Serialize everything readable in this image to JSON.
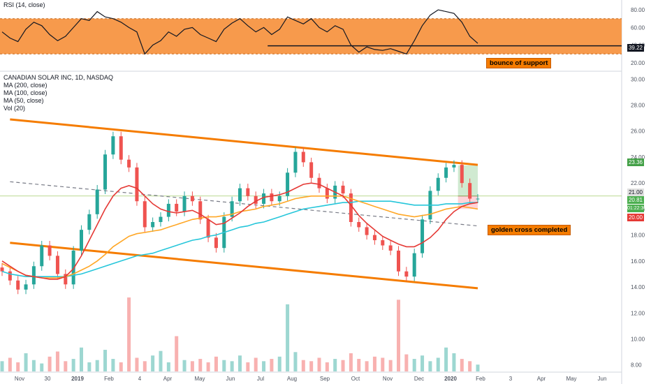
{
  "rsi_legend": "RSI (14, close)",
  "price_legend": [
    "CANADIAN SOLAR INC, 1D, NASDAQ",
    "MA (200, close)",
    "MA (100, close)",
    "MA (50, close)",
    "Vol (20)"
  ],
  "annotations": {
    "rsi_note": "bounce of support",
    "cross_note": "golden cross completed"
  },
  "colors": {
    "rsi_band": "#f79a4c",
    "channel": "#f57c00",
    "up_candle": "#26a69a",
    "down_candle": "#ef5350",
    "ma200": "#26c6da",
    "ma100": "#ffa726",
    "ma50": "#e53935",
    "target_zone": "#c8e6c9",
    "stop_zone": "#ffcdd2"
  },
  "price_tags": {
    "target": "23.36",
    "current": "21.00",
    "last": "20.81",
    "countdown": "01:22:30",
    "stop": "20.00"
  },
  "rsi_tag": "39.22",
  "chart_data": [
    {
      "type": "line",
      "title": "RSI (14, close)",
      "ylim": [
        12,
        88
      ],
      "yticks": [
        "80.00",
        "60.00",
        "40.00",
        "20.00"
      ],
      "band": [
        30,
        70
      ],
      "support_level": 39.22,
      "x": [
        "Nov 1 2018",
        "Nov 8",
        "Nov 15",
        "Nov 22",
        "Nov 30",
        "Dec 7",
        "Dec 14",
        "Dec 21",
        "Jan 2 2019",
        "Jan 9",
        "Jan 16",
        "Jan 24",
        "Feb 1",
        "Feb 8",
        "Feb 15",
        "Feb 22",
        "Mar 4",
        "Mar 11",
        "Mar 18",
        "Mar 25",
        "Apr 1",
        "Apr 8",
        "Apr 15",
        "Apr 22",
        "May 1",
        "May 8",
        "May 15",
        "May 22",
        "Jun 3",
        "Jun 10",
        "Jun 17",
        "Jun 24",
        "Jul 1",
        "Jul 9",
        "Jul 16",
        "Jul 23",
        "Aug 1",
        "Aug 8",
        "Aug 15",
        "Aug 22",
        "Sep 3",
        "Sep 10",
        "Sep 17",
        "Sep 24",
        "Oct 1",
        "Oct 8",
        "Oct 15",
        "Oct 22",
        "Nov 1 2019",
        "Nov 8",
        "Nov 15",
        "Nov 22",
        "Dec 2",
        "Dec 9",
        "Dec 16",
        "Dec 23",
        "Jan 2 2020",
        "Jan 9",
        "Jan 16",
        "Jan 24",
        "Feb 3 2020"
      ],
      "values": [
        55,
        48,
        44,
        58,
        66,
        62,
        52,
        45,
        50,
        60,
        70,
        68,
        78,
        72,
        70,
        66,
        60,
        55,
        30,
        40,
        45,
        55,
        50,
        58,
        60,
        52,
        48,
        44,
        58,
        65,
        70,
        62,
        55,
        60,
        52,
        58,
        72,
        68,
        64,
        70,
        60,
        55,
        62,
        58,
        40,
        32,
        38,
        35,
        34,
        36,
        33,
        30,
        45,
        62,
        74,
        80,
        78,
        76,
        66,
        50,
        42
      ]
    },
    {
      "type": "line",
      "title": "CANADIAN SOLAR INC, 1D, NASDAQ",
      "ylim": [
        7.5,
        30.5
      ],
      "yticks": [
        "30.00",
        "28.00",
        "26.00",
        "24.00",
        "22.00",
        "20.00",
        "18.00",
        "16.00",
        "14.00",
        "12.00",
        "10.00",
        "8.00"
      ],
      "x_ticks": [
        "Nov",
        "30",
        "2019",
        "Feb",
        "4",
        "Apr",
        "May",
        "Jun",
        "Jul",
        "Aug",
        "Sep",
        "Oct",
        "Nov",
        "Dec",
        "2020",
        "Feb",
        "3",
        "Apr",
        "May",
        "Jun"
      ],
      "x": [
        "Nov 1 2018",
        "Nov 8",
        "Nov 15",
        "Nov 22",
        "Nov 30",
        "Dec 7",
        "Dec 14",
        "Dec 21",
        "Jan 2 2019",
        "Jan 9",
        "Jan 16",
        "Jan 24",
        "Feb 1",
        "Feb 8",
        "Feb 15",
        "Feb 22",
        "Mar 4",
        "Mar 11",
        "Mar 18",
        "Mar 25",
        "Apr 1",
        "Apr 8",
        "Apr 15",
        "Apr 22",
        "May 1",
        "May 8",
        "May 15",
        "May 22",
        "Jun 3",
        "Jun 10",
        "Jun 17",
        "Jun 24",
        "Jul 1",
        "Jul 9",
        "Jul 16",
        "Jul 23",
        "Aug 1",
        "Aug 8",
        "Aug 15",
        "Aug 22",
        "Sep 3",
        "Sep 10",
        "Sep 17",
        "Sep 24",
        "Oct 1",
        "Oct 8",
        "Oct 15",
        "Oct 22",
        "Nov 1 2019",
        "Nov 8",
        "Nov 15",
        "Nov 22",
        "Dec 2",
        "Dec 9",
        "Dec 16",
        "Dec 23",
        "Jan 2 2020",
        "Jan 9",
        "Jan 16",
        "Jan 24",
        "Feb 3 2020"
      ],
      "series": [
        {
          "values": [
            15.2,
            14.5,
            13.8,
            14.2,
            15.6,
            17.2,
            16.4,
            15.0,
            14.2,
            16.8,
            18.4,
            19.6,
            21.5,
            24.2,
            25.6,
            23.8,
            23.2,
            20.6,
            18.6,
            19.0,
            19.4,
            20.4,
            19.8,
            21.0,
            20.6,
            19.2,
            17.8,
            17.0,
            19.4,
            20.6,
            21.6,
            21.0,
            20.4,
            21.2,
            20.6,
            21.0,
            22.8,
            24.4,
            23.6,
            22.4,
            21.6,
            20.8,
            21.8,
            21.2,
            19.0,
            18.6,
            18.0,
            17.6,
            17.2,
            16.8,
            15.2,
            14.8,
            16.6,
            19.2,
            21.4,
            22.4,
            23.2,
            23.4,
            22.0,
            20.8,
            20.8
          ]
        },
        {
          "name": "MA (200, close)",
          "values": [
            15.2,
            15.0,
            14.9,
            14.8,
            14.8,
            14.8,
            14.8,
            14.8,
            14.8,
            14.9,
            15.0,
            15.2,
            15.4,
            15.6,
            15.8,
            16.0,
            16.2,
            16.4,
            16.5,
            16.6,
            16.8,
            17.0,
            17.2,
            17.4,
            17.6,
            17.7,
            17.9,
            18.0,
            18.2,
            18.4,
            18.6,
            18.7,
            18.9,
            19.0,
            19.2,
            19.4,
            19.6,
            19.8,
            20.0,
            20.1,
            20.2,
            20.3,
            20.4,
            20.5,
            20.5,
            20.6,
            20.6,
            20.6,
            20.6,
            20.6,
            20.5,
            20.4,
            20.3,
            20.3,
            20.3,
            20.3,
            20.4,
            20.4,
            20.4,
            20.5,
            20.5
          ]
        },
        {
          "name": "MA (100, close)",
          "values": [
            15.8,
            15.5,
            15.2,
            14.9,
            14.8,
            14.7,
            14.7,
            14.7,
            14.8,
            15.0,
            15.3,
            15.6,
            16.0,
            16.5,
            17.1,
            17.5,
            17.9,
            18.1,
            18.2,
            18.3,
            18.4,
            18.6,
            18.8,
            19.0,
            19.2,
            19.3,
            19.4,
            19.4,
            19.5,
            19.6,
            19.8,
            19.9,
            20.0,
            20.2,
            20.3,
            20.4,
            20.6,
            20.8,
            20.9,
            21.0,
            21.0,
            21.0,
            21.0,
            21.0,
            20.8,
            20.6,
            20.4,
            20.2,
            20.0,
            19.8,
            19.6,
            19.5,
            19.4,
            19.5,
            19.6,
            19.8,
            20.0,
            20.1,
            20.2,
            20.1,
            20.0
          ]
        },
        {
          "name": "MA (50, close)",
          "values": [
            16.0,
            15.6,
            15.2,
            14.9,
            14.8,
            14.7,
            14.6,
            14.6,
            14.8,
            15.4,
            16.4,
            17.6,
            18.8,
            20.0,
            21.0,
            21.6,
            21.8,
            21.6,
            21.0,
            20.4,
            20.0,
            19.8,
            19.7,
            19.8,
            19.9,
            19.6,
            19.2,
            18.8,
            18.9,
            19.3,
            19.7,
            20.2,
            20.6,
            20.9,
            21.0,
            21.1,
            21.3,
            21.6,
            21.9,
            22.0,
            21.9,
            21.6,
            21.3,
            21.0,
            20.3,
            19.5,
            18.9,
            18.4,
            17.9,
            17.6,
            17.3,
            17.1,
            17.1,
            17.4,
            17.8,
            18.4,
            19.2,
            19.8,
            20.2,
            20.4,
            20.5
          ]
        }
      ],
      "volume": [
        1.8,
        2.4,
        1.6,
        3.2,
        2.0,
        1.4,
        2.6,
        3.5,
        1.8,
        2.2,
        4.2,
        1.6,
        2.0,
        3.8,
        2.2,
        1.6,
        13.0,
        2.4,
        1.8,
        2.8,
        3.6,
        1.6,
        6.2,
        2.0,
        1.8,
        2.2,
        1.6,
        2.6,
        2.0,
        1.8,
        2.8,
        1.6,
        2.4,
        1.8,
        2.2,
        2.6,
        11.8,
        3.4,
        2.0,
        1.8,
        2.4,
        1.6,
        2.2,
        2.0,
        3.2,
        2.2,
        1.8,
        2.6,
        2.4,
        2.0,
        12.6,
        3.0,
        2.2,
        2.8,
        1.8,
        2.4,
        4.2,
        3.2,
        2.2,
        1.8,
        1.2
      ],
      "channel_upper": [
        [
          1,
          26.9
        ],
        [
          60,
          23.4
        ]
      ],
      "channel_lower": [
        [
          1,
          17.4
        ],
        [
          60,
          13.9
        ]
      ],
      "midline": [
        [
          1,
          22.1
        ],
        [
          60,
          18.7
        ]
      ],
      "trade_zone": {
        "start": 57.5,
        "end": 60,
        "target": 23.36,
        "entry": 21.0,
        "stop": 20.0
      },
      "price_line": 21.0
    }
  ]
}
